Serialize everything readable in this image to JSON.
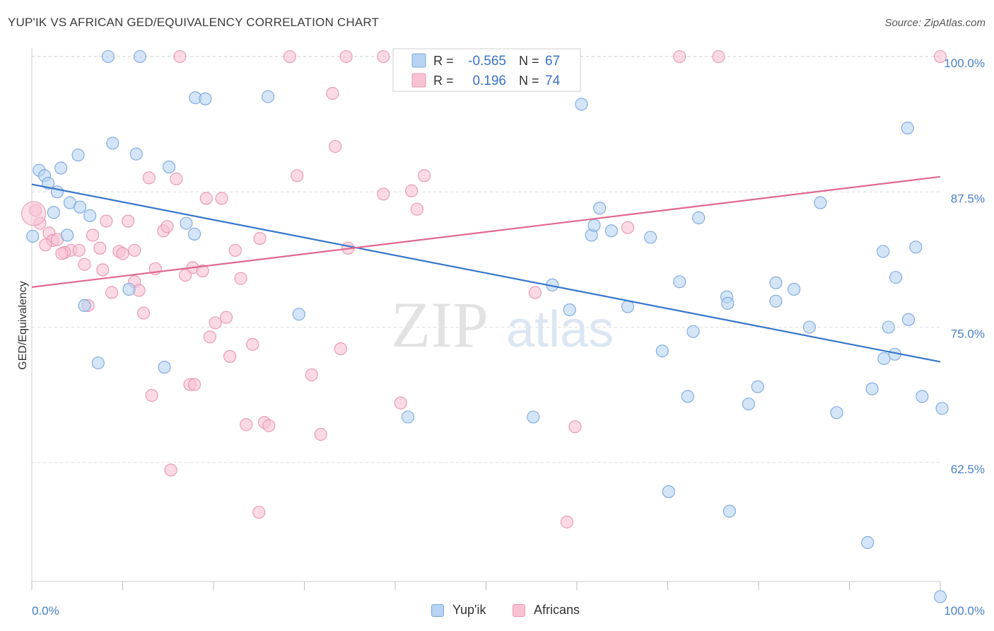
{
  "header": {
    "title": "YUP'IK VS AFRICAN GED/EQUIVALENCY CORRELATION CHART",
    "source": "Source: ZipAtlas.com"
  },
  "watermark": {
    "zip": "ZIP",
    "atlas": "atlas"
  },
  "legend": {
    "r_label": "R =",
    "n_label": "N =",
    "rows": [
      {
        "series": "Yup'ik",
        "r": "-0.565",
        "n": "67"
      },
      {
        "series": "Africans",
        "r": "0.196",
        "n": "74"
      }
    ]
  },
  "colors": {
    "blue_fill": "#b8d3f3",
    "blue_stroke": "#7aa8dd",
    "blue_line": "#3776cc",
    "pink_fill": "#f8c2d3",
    "pink_stroke": "#e895b0",
    "pink_line": "#e06890",
    "tick_text": "#4a7fc8",
    "grid": "#dddddd"
  },
  "chart_data": {
    "type": "scatter",
    "title": "YUP'IK VS AFRICAN GED/EQUIVALENCY CORRELATION CHART",
    "ylabel": "GED/Equivalency",
    "xlabel": "",
    "xlim": [
      0,
      100
    ],
    "ylim": [
      50,
      100
    ],
    "x_tick_labels": [
      "0.0%",
      "100.0%"
    ],
    "y_ticks": [
      62.5,
      75.0,
      87.5,
      100.0
    ],
    "y_tick_labels": [
      "62.5%",
      "75.0%",
      "87.5%",
      "100.0%"
    ],
    "grid": "horizontal dashed",
    "legend_position": "top-center",
    "series": [
      {
        "name": "Yup'ik",
        "trend": [
          [
            0,
            88.2
          ],
          [
            100,
            71.8
          ]
        ],
        "points": [
          [
            8.4,
            100
          ],
          [
            11.9,
            100
          ],
          [
            18.0,
            96.2
          ],
          [
            19.1,
            96.1
          ],
          [
            26.0,
            96.3
          ],
          [
            60.5,
            95.6
          ],
          [
            96.4,
            93.4
          ],
          [
            8.9,
            92.0
          ],
          [
            5.1,
            90.9
          ],
          [
            11.5,
            91.0
          ],
          [
            3.2,
            89.7
          ],
          [
            15.1,
            89.8
          ],
          [
            0.8,
            89.5
          ],
          [
            1.4,
            89.0
          ],
          [
            1.8,
            88.3
          ],
          [
            2.8,
            87.5
          ],
          [
            4.2,
            86.5
          ],
          [
            5.3,
            86.1
          ],
          [
            2.4,
            85.6
          ],
          [
            6.4,
            85.3
          ],
          [
            17.0,
            84.6
          ],
          [
            0.1,
            83.4
          ],
          [
            3.9,
            83.5
          ],
          [
            17.9,
            83.6
          ],
          [
            61.6,
            83.5
          ],
          [
            61.9,
            84.4
          ],
          [
            62.5,
            86.0
          ],
          [
            63.8,
            83.9
          ],
          [
            68.1,
            83.3
          ],
          [
            73.4,
            85.1
          ],
          [
            86.8,
            86.5
          ],
          [
            93.7,
            82.0
          ],
          [
            97.3,
            82.4
          ],
          [
            95.1,
            79.6
          ],
          [
            71.3,
            79.2
          ],
          [
            76.5,
            77.8
          ],
          [
            81.9,
            77.4
          ],
          [
            81.9,
            79.1
          ],
          [
            83.9,
            78.5
          ],
          [
            57.3,
            78.9
          ],
          [
            10.7,
            78.5
          ],
          [
            5.8,
            77.0
          ],
          [
            29.4,
            76.2
          ],
          [
            76.6,
            77.2
          ],
          [
            59.2,
            76.6
          ],
          [
            65.6,
            76.9
          ],
          [
            96.5,
            75.7
          ],
          [
            94.3,
            75.0
          ],
          [
            85.6,
            75.0
          ],
          [
            72.8,
            74.6
          ],
          [
            95.0,
            72.5
          ],
          [
            93.8,
            72.1
          ],
          [
            69.4,
            72.8
          ],
          [
            7.3,
            71.7
          ],
          [
            14.6,
            71.3
          ],
          [
            79.9,
            69.5
          ],
          [
            72.2,
            68.6
          ],
          [
            78.9,
            67.9
          ],
          [
            92.5,
            69.3
          ],
          [
            98.0,
            68.6
          ],
          [
            100.2,
            67.5
          ],
          [
            88.6,
            67.1
          ],
          [
            41.4,
            66.7
          ],
          [
            55.2,
            66.7
          ],
          [
            70.1,
            59.8
          ],
          [
            76.8,
            58.0
          ],
          [
            92.0,
            55.1
          ],
          [
            100.0,
            50.1
          ]
        ]
      },
      {
        "name": "Africans",
        "trend": [
          [
            0,
            78.7
          ],
          [
            100,
            88.9
          ]
        ],
        "points": [
          [
            16.3,
            100
          ],
          [
            28.4,
            100
          ],
          [
            34.6,
            100
          ],
          [
            52.4,
            100
          ],
          [
            71.3,
            100
          ],
          [
            75.6,
            100
          ],
          [
            100.0,
            100
          ],
          [
            33.1,
            96.6
          ],
          [
            33.4,
            91.7
          ],
          [
            12.9,
            88.8
          ],
          [
            15.9,
            88.7
          ],
          [
            29.2,
            89.0
          ],
          [
            43.2,
            89.0
          ],
          [
            38.7,
            87.3
          ],
          [
            41.8,
            87.6
          ],
          [
            19.2,
            86.9
          ],
          [
            20.9,
            86.9
          ],
          [
            42.4,
            85.9
          ],
          [
            0.4,
            85.8
          ],
          [
            0.9,
            84.6
          ],
          [
            8.2,
            84.8
          ],
          [
            10.6,
            84.8
          ],
          [
            14.5,
            83.9
          ],
          [
            14.9,
            84.3
          ],
          [
            65.6,
            84.2
          ],
          [
            1.9,
            83.7
          ],
          [
            6.7,
            83.5
          ],
          [
            2.3,
            83.0
          ],
          [
            2.8,
            83.1
          ],
          [
            1.5,
            82.6
          ],
          [
            25.1,
            83.2
          ],
          [
            7.5,
            82.3
          ],
          [
            11.3,
            82.1
          ],
          [
            4.3,
            82.1
          ],
          [
            5.2,
            82.1
          ],
          [
            3.6,
            81.9
          ],
          [
            3.3,
            81.8
          ],
          [
            9.6,
            82.0
          ],
          [
            10.0,
            81.8
          ],
          [
            22.4,
            82.1
          ],
          [
            34.8,
            82.3
          ],
          [
            5.8,
            80.8
          ],
          [
            7.8,
            80.3
          ],
          [
            13.6,
            80.4
          ],
          [
            17.7,
            80.5
          ],
          [
            18.8,
            80.2
          ],
          [
            16.9,
            79.8
          ],
          [
            23.0,
            79.5
          ],
          [
            11.3,
            79.2
          ],
          [
            11.8,
            78.4
          ],
          [
            8.8,
            78.2
          ],
          [
            55.4,
            78.2
          ],
          [
            6.2,
            77.0
          ],
          [
            12.3,
            76.3
          ],
          [
            21.4,
            75.9
          ],
          [
            20.2,
            75.4
          ],
          [
            19.6,
            74.1
          ],
          [
            24.3,
            73.4
          ],
          [
            34.0,
            73.0
          ],
          [
            21.8,
            72.3
          ],
          [
            30.8,
            70.6
          ],
          [
            17.4,
            69.7
          ],
          [
            17.9,
            69.7
          ],
          [
            13.2,
            68.7
          ],
          [
            40.6,
            68.0
          ],
          [
            25.6,
            66.2
          ],
          [
            23.6,
            66.0
          ],
          [
            26.1,
            65.9
          ],
          [
            59.8,
            65.8
          ],
          [
            31.8,
            65.1
          ],
          [
            15.3,
            61.8
          ],
          [
            25.0,
            57.9
          ],
          [
            58.9,
            57.0
          ],
          [
            38.7,
            100.0
          ]
        ]
      }
    ]
  }
}
